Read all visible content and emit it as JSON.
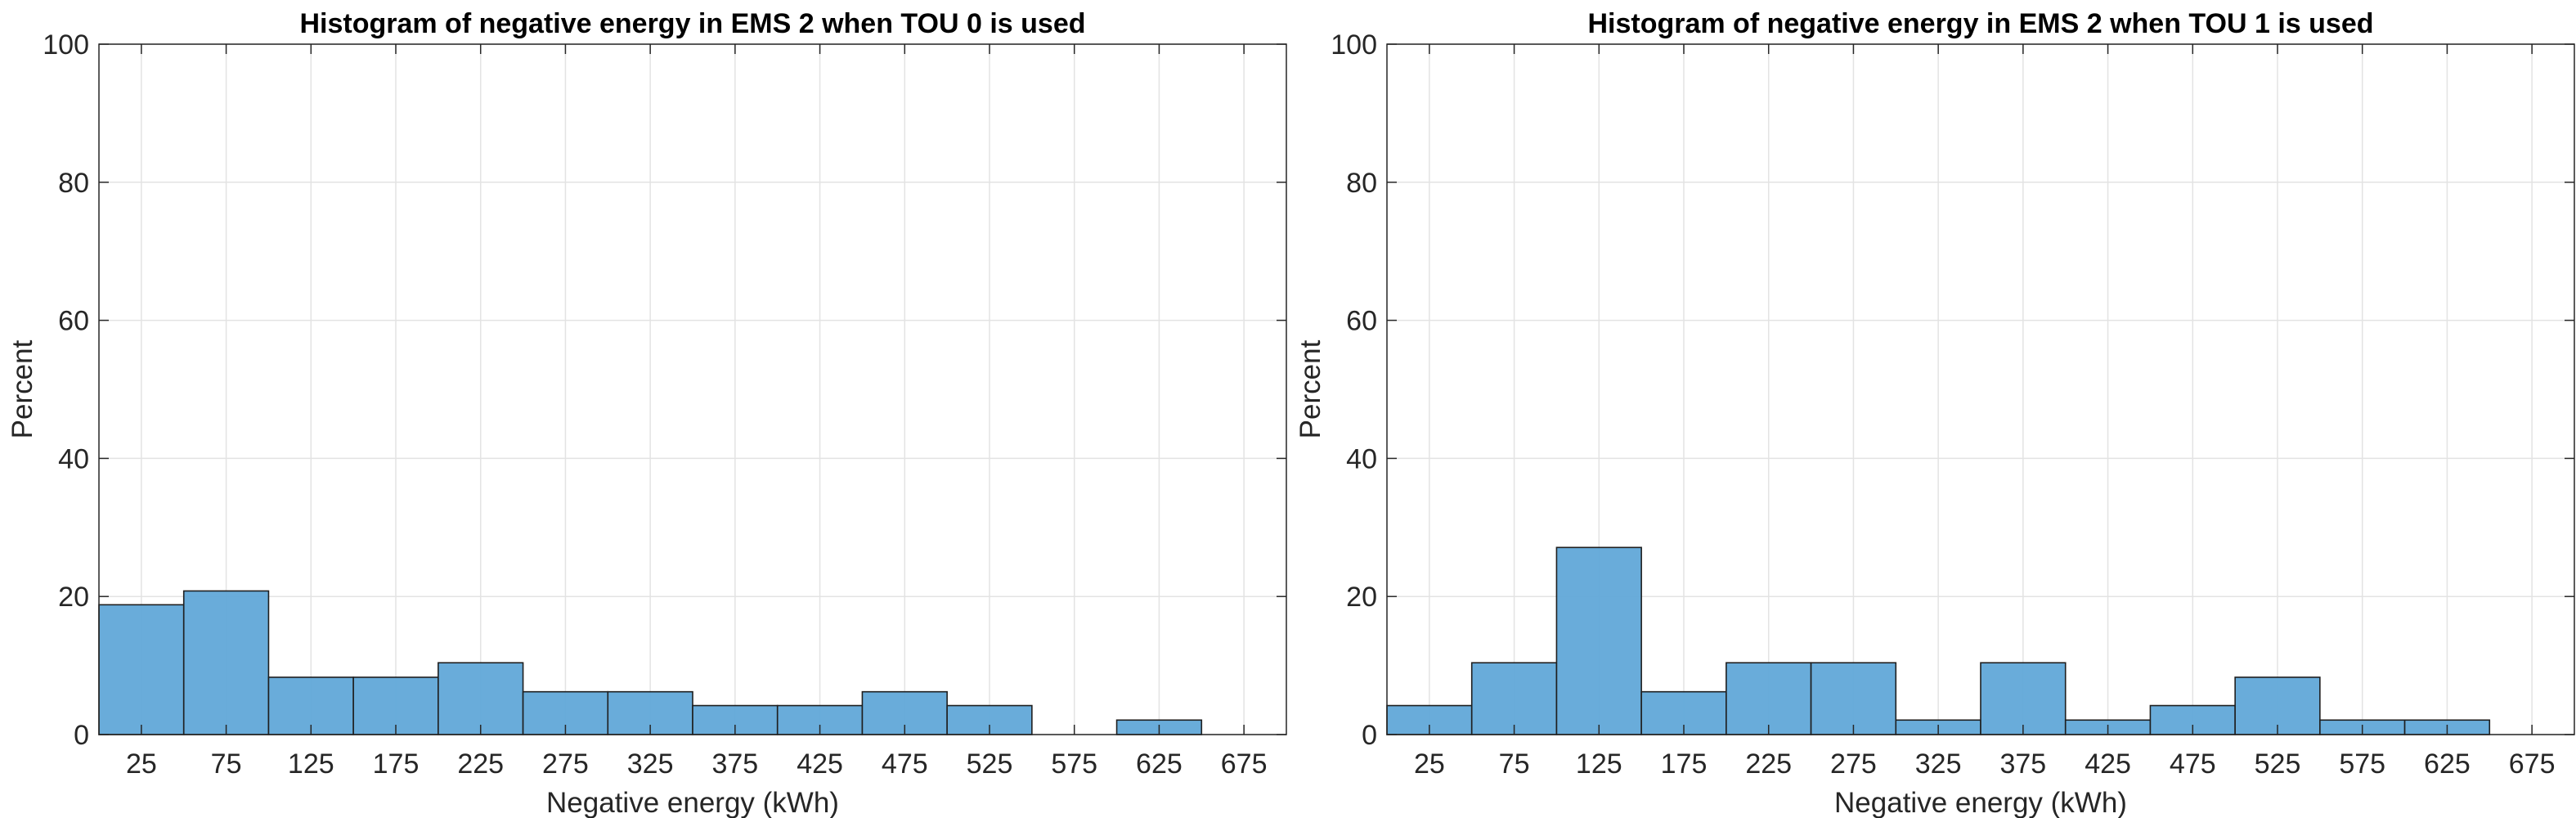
{
  "chart_data": [
    {
      "type": "bar",
      "title": "Histogram of negative energy in EMS 2 when TOU 0 is used",
      "xlabel": "Negative energy (kWh)",
      "ylabel": "Percent",
      "ylim": [
        0,
        100
      ],
      "xlim": [
        0,
        700
      ],
      "bin_width": 50,
      "yticks": [
        0,
        20,
        40,
        60,
        80,
        100
      ],
      "categories": [
        "25",
        "75",
        "125",
        "175",
        "225",
        "275",
        "325",
        "375",
        "425",
        "475",
        "525",
        "575",
        "625",
        "675"
      ],
      "values": [
        18.8,
        20.8,
        8.3,
        8.3,
        10.4,
        6.2,
        6.2,
        4.2,
        4.2,
        6.2,
        4.2,
        0,
        2.1,
        0
      ],
      "grid": true,
      "color": "#61a8d8"
    },
    {
      "type": "bar",
      "title": "Histogram of negative energy in EMS 2 when TOU 1 is used",
      "xlabel": "Negative energy (kWh)",
      "ylabel": "Percent",
      "ylim": [
        0,
        100
      ],
      "xlim": [
        0,
        700
      ],
      "bin_width": 50,
      "yticks": [
        0,
        20,
        40,
        60,
        80,
        100
      ],
      "categories": [
        "25",
        "75",
        "125",
        "175",
        "225",
        "275",
        "325",
        "375",
        "425",
        "475",
        "525",
        "575",
        "625",
        "675"
      ],
      "values": [
        4.2,
        10.4,
        27.1,
        6.2,
        10.4,
        10.4,
        2.1,
        10.4,
        2.1,
        4.2,
        8.3,
        2.1,
        2.1,
        0
      ],
      "grid": true,
      "color": "#61a8d8"
    }
  ]
}
